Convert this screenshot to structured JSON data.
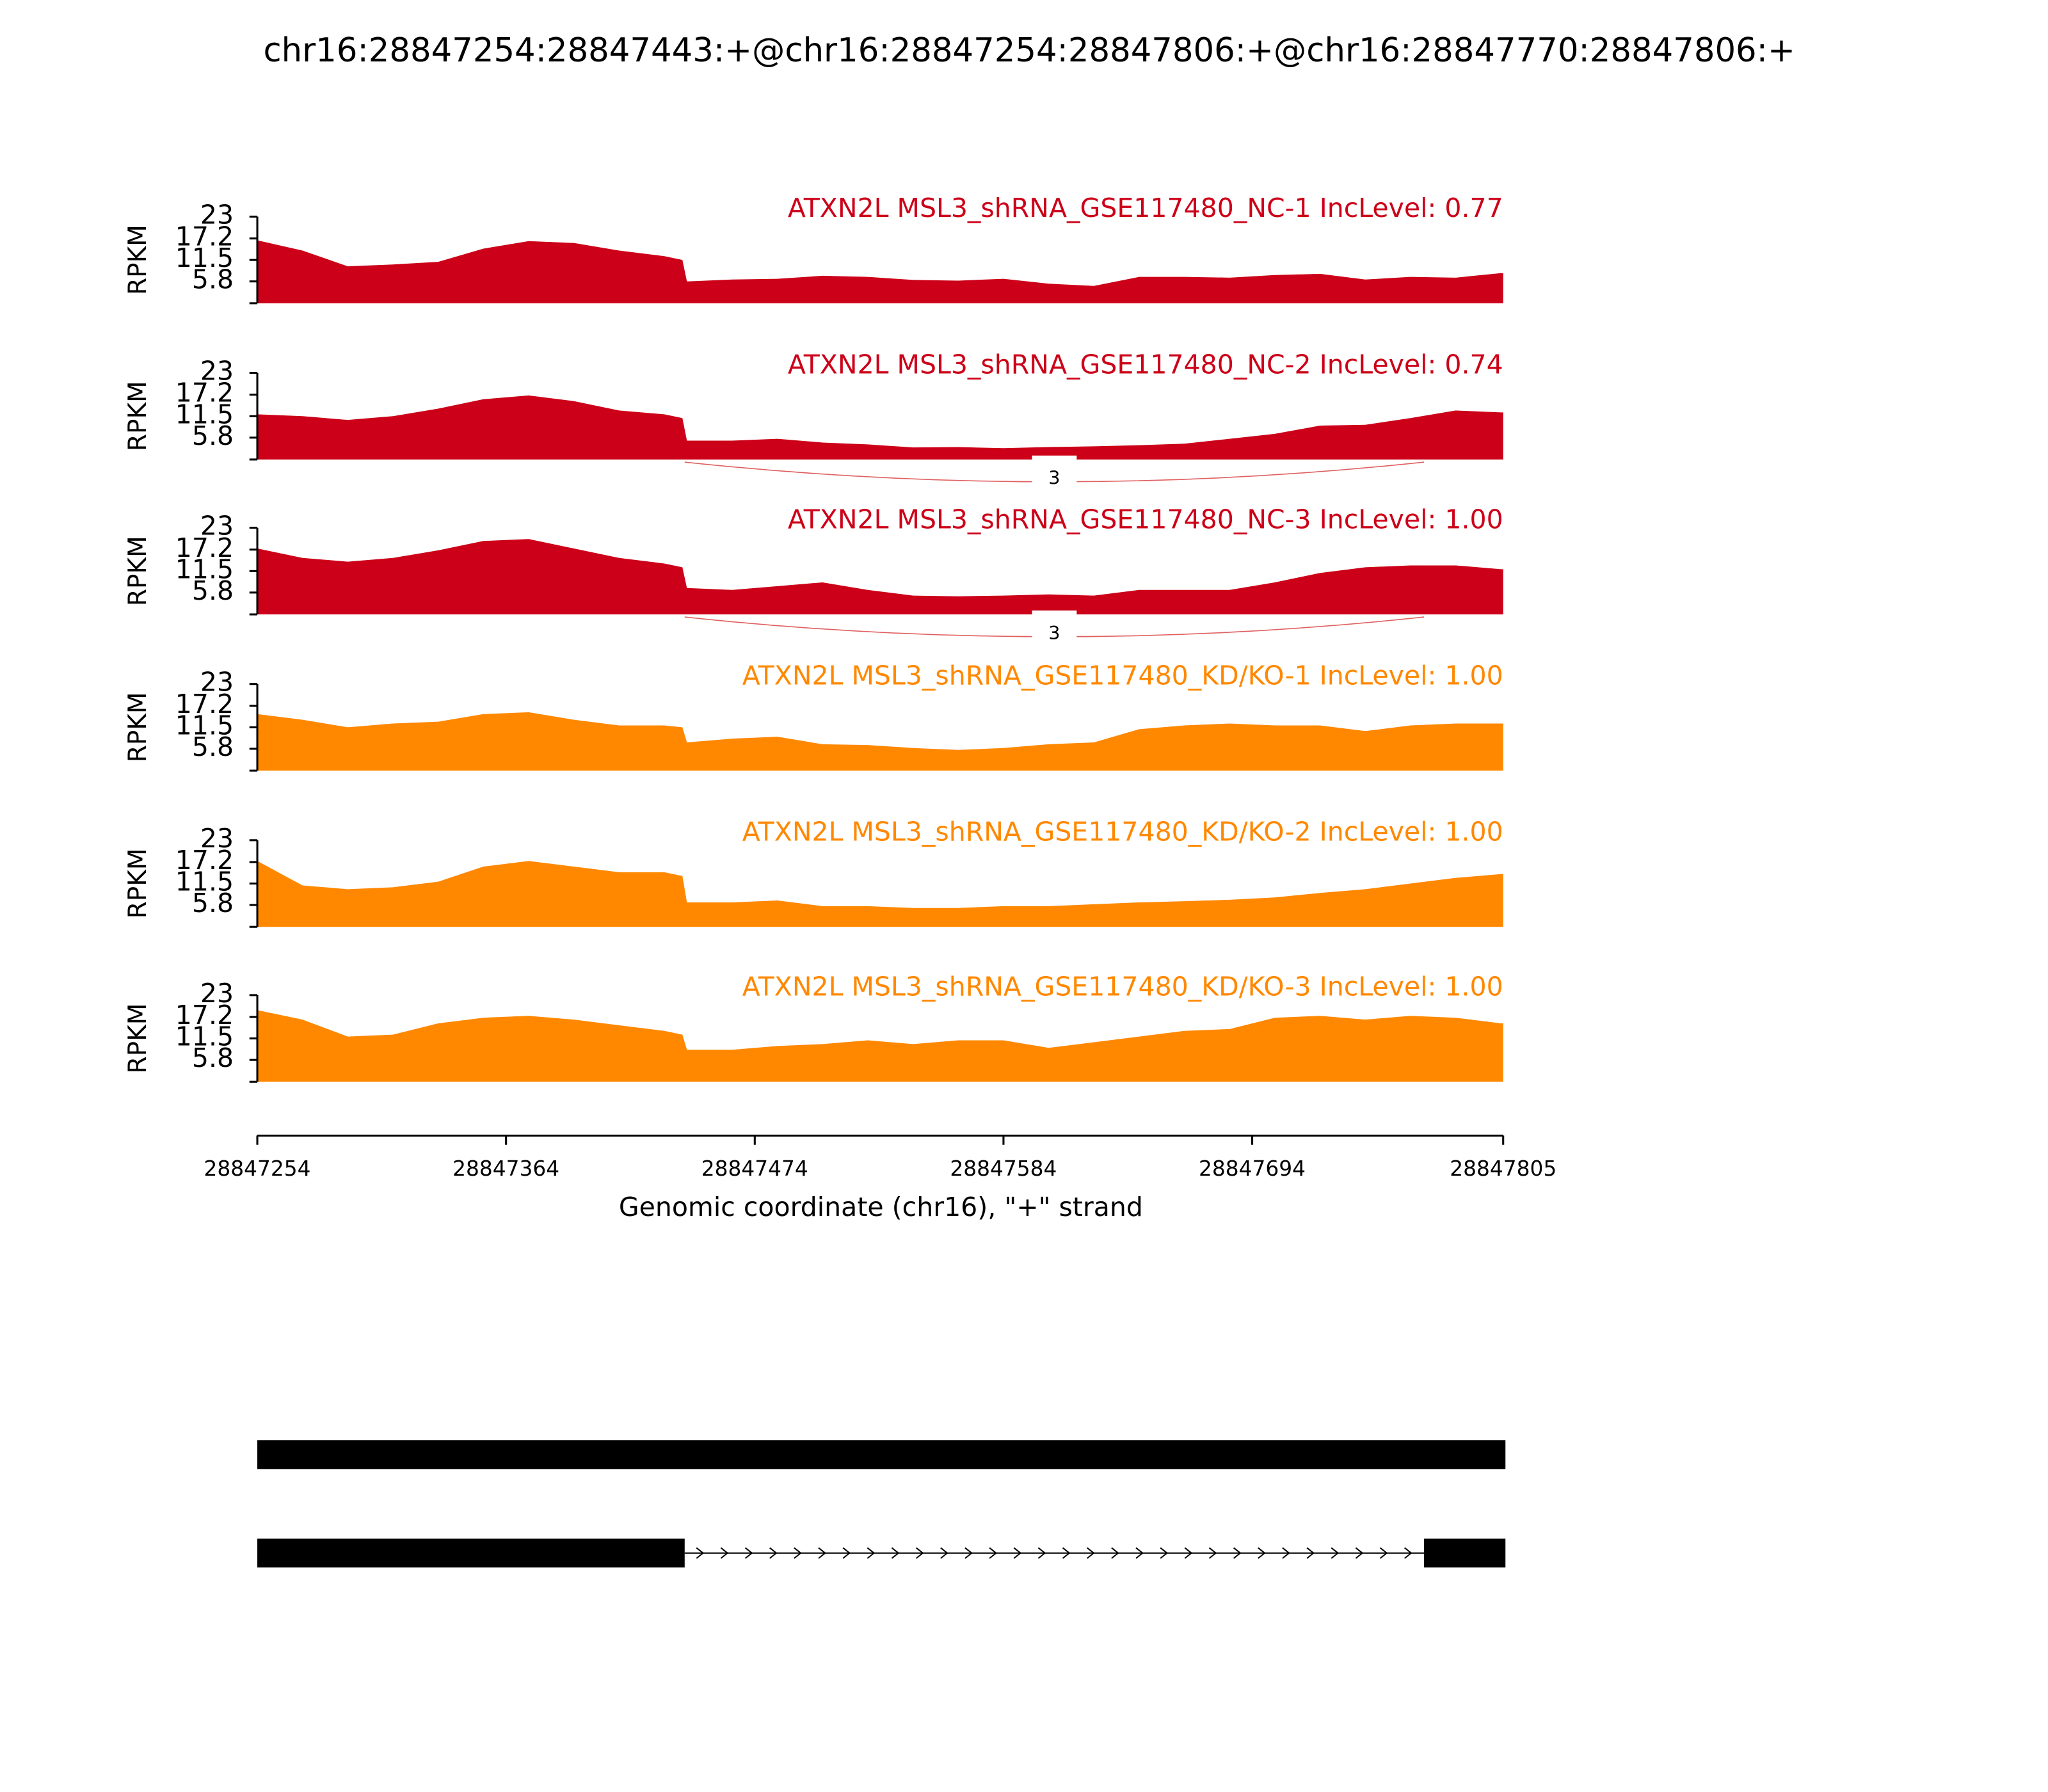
{
  "chart_data": {
    "type": "sashimi",
    "title": "chr16:28847254:28847443:+@chr16:28847254:28847806:+@chr16:28847770:28847806:+",
    "ylabel": "RPKM",
    "xlabel": "Genomic coordinate (chr16), \"+\" strand",
    "xlim": [
      28847254,
      28847805
    ],
    "xticks": [
      28847254,
      28847364,
      28847474,
      28847584,
      28847694,
      28847805
    ],
    "ylim": [
      0,
      23
    ],
    "yticks": [
      5.8,
      11.5,
      17.2,
      23
    ],
    "x": [
      28847254,
      28847274,
      28847294,
      28847314,
      28847334,
      28847354,
      28847374,
      28847394,
      28847414,
      28847434,
      28847442,
      28847444,
      28847464,
      28847484,
      28847504,
      28847524,
      28847544,
      28847564,
      28847584,
      28847604,
      28847624,
      28847644,
      28847664,
      28847684,
      28847704,
      28847724,
      28847744,
      28847764,
      28847784,
      28847804,
      28847805
    ],
    "series": [
      {
        "name": "ATXN2L MSL3_shRNA_GSE117480_NC-1 IncLevel: 0.77",
        "color": "#cc0018",
        "values": [
          16.7,
          14,
          9.8,
          10.3,
          11,
          14.5,
          16.5,
          16,
          14,
          12.5,
          11.5,
          5.8,
          6.3,
          6.5,
          7.3,
          7,
          6.2,
          6,
          6.5,
          5.2,
          4.6,
          7,
          7,
          6.8,
          7.5,
          7.8,
          6.3,
          7,
          6.8,
          8,
          8
        ]
      },
      {
        "name": "ATXN2L MSL3_shRNA_GSE117480_NC-2 IncLevel: 0.74",
        "color": "#cc0018",
        "values": [
          12,
          11.5,
          10.5,
          11.5,
          13.5,
          16,
          17,
          15.5,
          13,
          12,
          11,
          5,
          5,
          5.5,
          4.5,
          4,
          3.2,
          3.3,
          3,
          3.3,
          3.5,
          3.8,
          4.2,
          5.5,
          6.8,
          9,
          9.2,
          11,
          13,
          12.5,
          12.5
        ],
        "junctions": [
          {
            "x": [
              28847443,
              28847770
            ],
            "label": 3
          }
        ]
      },
      {
        "name": "ATXN2L MSL3_shRNA_GSE117480_NC-3 IncLevel: 1.00",
        "color": "#cc0018",
        "values": [
          17.5,
          15,
          14,
          15,
          17,
          19.5,
          20,
          17.5,
          15,
          13.5,
          12.5,
          7,
          6.5,
          7.5,
          8.5,
          6.5,
          5,
          4.8,
          5,
          5.3,
          5,
          6.5,
          6.5,
          6.5,
          8.5,
          11,
          12.5,
          13,
          13,
          12,
          12
        ],
        "junctions": [
          {
            "x": [
              28847443,
              28847770
            ],
            "label": 3
          }
        ]
      },
      {
        "name": "ATXN2L MSL3_shRNA_GSE117480_KD/KO-1 IncLevel: 1.00",
        "color": "#ff8800",
        "values": [
          15,
          13.5,
          11.5,
          12.5,
          13,
          15,
          15.5,
          13.5,
          12,
          12,
          11.5,
          7.5,
          8.5,
          9,
          7,
          6.8,
          6,
          5.5,
          6,
          7,
          7.5,
          11,
          12,
          12.5,
          12,
          12,
          10.5,
          12,
          12.5,
          12.5,
          12.5
        ]
      },
      {
        "name": "ATXN2L MSL3_shRNA_GSE117480_KD/KO-2 IncLevel: 1.00",
        "color": "#ff8800",
        "values": [
          17.5,
          11,
          10,
          10.5,
          12,
          16,
          17.5,
          16,
          14.5,
          14.5,
          13.5,
          6.5,
          6.5,
          7,
          5.5,
          5.5,
          5,
          5,
          5.5,
          5.5,
          6,
          6.5,
          6.8,
          7.2,
          7.8,
          9,
          10,
          11.5,
          13,
          14,
          14
        ]
      },
      {
        "name": "ATXN2L MSL3_shRNA_GSE117480_KD/KO-3 IncLevel: 1.00",
        "color": "#ff8800",
        "values": [
          19,
          16.5,
          12,
          12.5,
          15.5,
          17,
          17.5,
          16.5,
          15,
          13.5,
          12.5,
          8.5,
          8.5,
          9.5,
          10,
          11,
          10,
          11,
          11,
          9,
          10.5,
          12,
          13.5,
          14,
          17,
          17.5,
          16.5,
          17.5,
          17,
          15.5,
          15.5
        ]
      }
    ],
    "transcripts": [
      {
        "exons": [
          [
            28847254,
            28847806
          ]
        ]
      },
      {
        "exons": [
          [
            28847254,
            28847443
          ],
          [
            28847770,
            28847806
          ]
        ]
      }
    ]
  }
}
